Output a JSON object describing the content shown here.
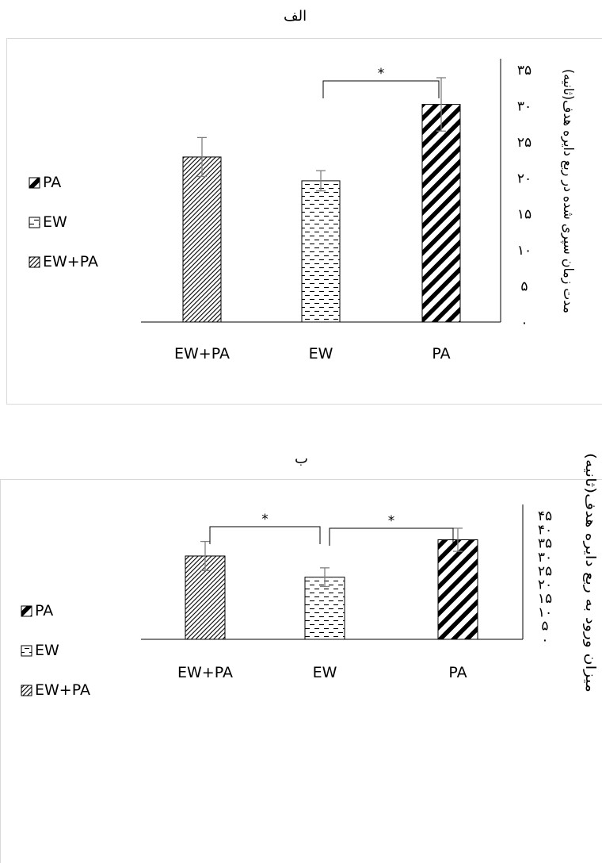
{
  "colors": {
    "axis": "#000000",
    "error_bar": "#7f7f7f",
    "bracket": "#000000",
    "frame": "#d9d9d9"
  },
  "panels": [
    {
      "title": "الف"
    },
    {
      "title": "ب"
    }
  ],
  "chart_data": [
    {
      "type": "bar",
      "title": "الف",
      "categories": [
        "EW+PA",
        "EW",
        "PA"
      ],
      "values": [
        22.9,
        19.6,
        30.2
      ],
      "errors": [
        2.7,
        1.4,
        3.7
      ],
      "patterns": [
        "thin-diagonal",
        "dashes",
        "thick-diagonal"
      ],
      "ylabel": "مدت زمان سپری شده در ربع دایره هدف(ثانیه)",
      "ylim": [
        0,
        35
      ],
      "yticks": [
        "۰",
        "۵",
        "۱۰",
        "۱۵",
        "۲۰",
        "۲۵",
        "۳۰",
        "۳۵"
      ],
      "legend": [
        {
          "label": "PA",
          "pattern": "thick-diagonal"
        },
        {
          "label": "EW",
          "pattern": "dashes"
        },
        {
          "label": "EW+PA",
          "pattern": "thin-diagonal"
        }
      ],
      "legend_position": "left",
      "significance": [
        {
          "between": [
            "EW",
            "PA"
          ],
          "label": "*"
        }
      ],
      "grid": false
    },
    {
      "type": "bar",
      "title": "ب",
      "categories": [
        "EW+PA",
        "EW",
        "PA"
      ],
      "values": [
        30.3,
        22.6,
        36.2
      ],
      "errors": [
        5.3,
        3.4,
        4.2
      ],
      "patterns": [
        "thin-diagonal",
        "dashes",
        "thick-diagonal"
      ],
      "ylabel": "میزان ورود به ربع دایره هدف(ثانیه)",
      "ylim": [
        0,
        45
      ],
      "yticks": [
        "۰",
        "۵",
        "۱۰",
        "۱۵",
        "۲۰",
        "۲۵",
        "۳۰",
        "۳۵",
        "۴۰",
        "۴۵"
      ],
      "legend": [
        {
          "label": "PA",
          "pattern": "thick-diagonal"
        },
        {
          "label": "EW",
          "pattern": "dashes"
        },
        {
          "label": "EW+PA",
          "pattern": "thin-diagonal"
        }
      ],
      "legend_position": "left",
      "significance": [
        {
          "between": [
            "EW+PA",
            "EW"
          ],
          "label": "*"
        },
        {
          "between": [
            "EW",
            "PA"
          ],
          "label": "*"
        }
      ],
      "grid": false
    }
  ]
}
